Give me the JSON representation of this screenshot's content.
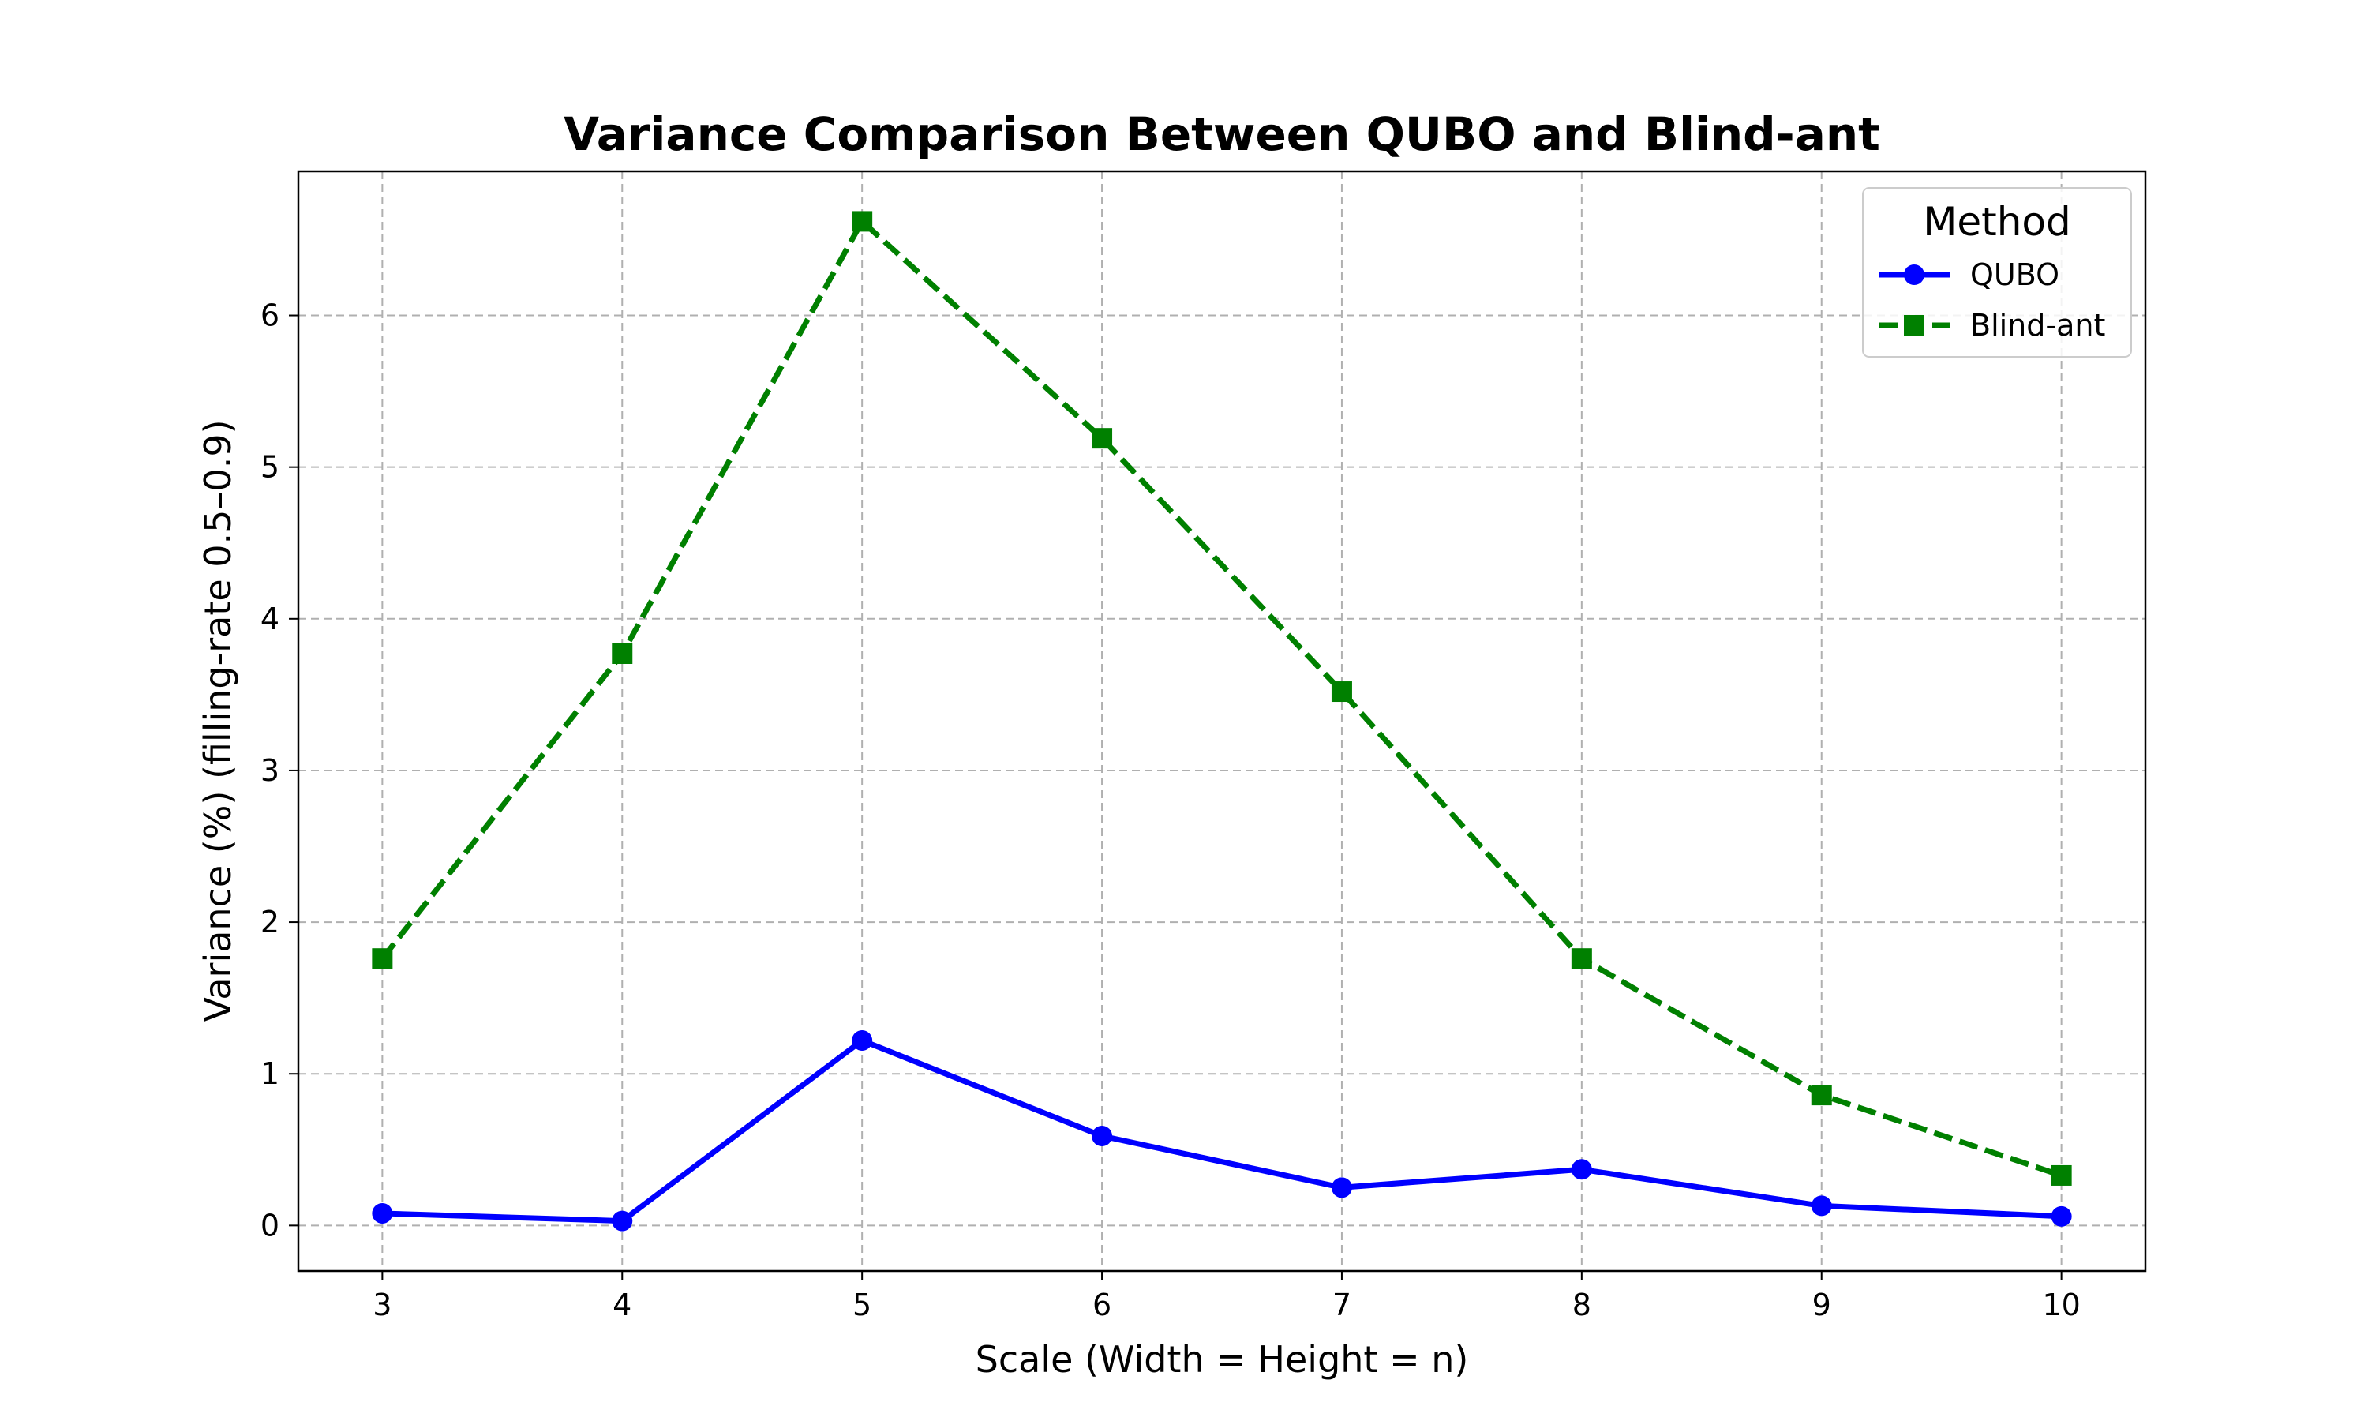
{
  "chart_data": {
    "type": "line",
    "title": "Variance Comparison Between QUBO and Blind-ant",
    "xlabel": "Scale (Width = Height = n)",
    "ylabel": "Variance (%) (filling-rate 0.5–0.9)",
    "x": [
      3,
      4,
      5,
      6,
      7,
      8,
      9,
      10
    ],
    "xlim": [
      2.65,
      10.35
    ],
    "ylim": [
      -0.3,
      6.95
    ],
    "xticks": [
      "3",
      "4",
      "5",
      "6",
      "7",
      "8",
      "9",
      "10"
    ],
    "yticks": [
      "0",
      "1",
      "2",
      "3",
      "4",
      "5",
      "6"
    ],
    "grid": true,
    "legend": {
      "title": "Method",
      "placement": "top-right"
    },
    "series": [
      {
        "name": "QUBO",
        "color": "#0000ff",
        "line_style": "solid",
        "marker": "circle",
        "values": [
          0.08,
          0.03,
          1.22,
          0.59,
          0.25,
          0.37,
          0.13,
          0.06
        ]
      },
      {
        "name": "Blind-ant",
        "color": "#008000",
        "line_style": "dashed",
        "marker": "square",
        "values": [
          1.76,
          3.77,
          6.62,
          5.19,
          3.52,
          1.76,
          0.86,
          0.33
        ]
      }
    ]
  }
}
